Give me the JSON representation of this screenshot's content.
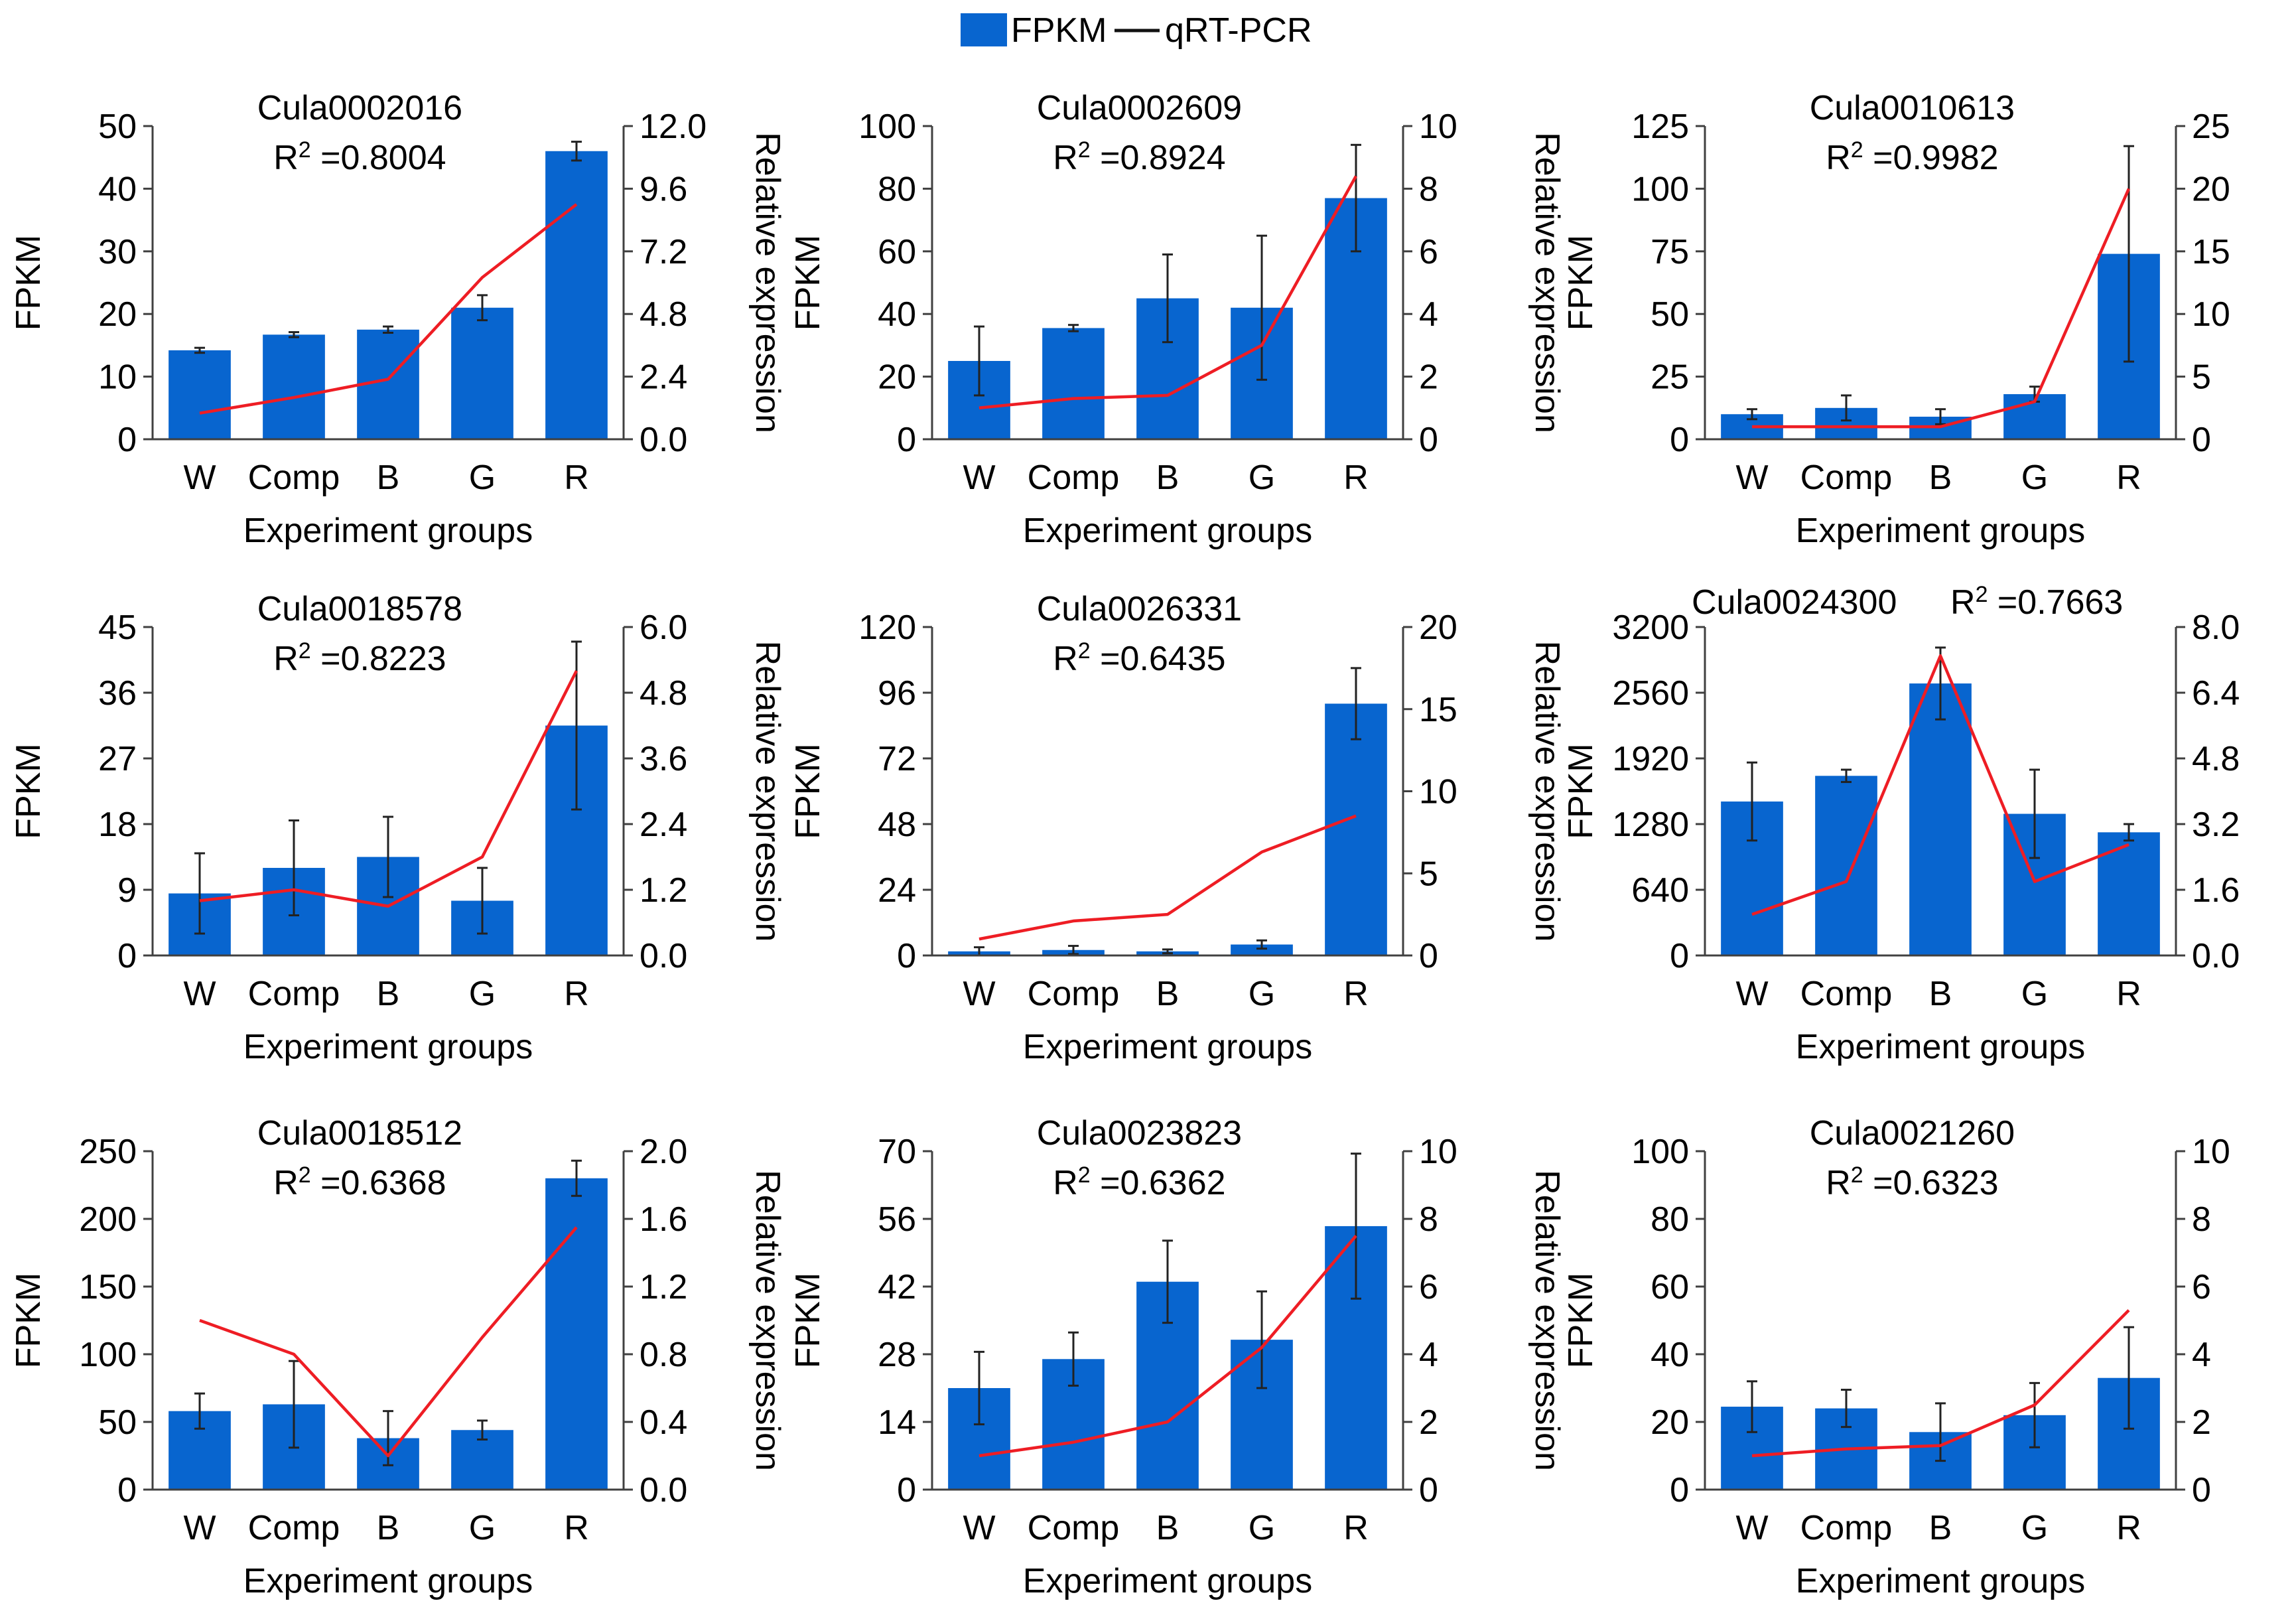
{
  "legend": {
    "bar_label": "FPKM",
    "line_label": "qRT-PCR"
  },
  "colors": {
    "bar": "#0865cf",
    "line": "#ee1d24",
    "axis": "#404040",
    "text": "#000000"
  },
  "chart_data": [
    {
      "type": "bar",
      "title": "Cula0002016",
      "r2_prefix": "R",
      "r2_value": " =0.8004",
      "categories": [
        "W",
        "Comp",
        "B",
        "G",
        "R"
      ],
      "xlabel": "Experiment groups",
      "ylabel": "FPKM",
      "y2label": "Relative expression",
      "y_ticks": [
        "0",
        "10",
        "20",
        "30",
        "40",
        "50"
      ],
      "ylim": [
        0,
        50
      ],
      "y2_ticks": [
        "0.0",
        "2.4",
        "4.8",
        "7.2",
        "9.6",
        "12.0"
      ],
      "y2lim": [
        0,
        12
      ],
      "series": [
        {
          "name": "FPKM",
          "values": [
            14.2,
            16.7,
            17.5,
            21.0,
            46.0
          ],
          "errors": [
            0.4,
            0.4,
            0.5,
            2.0,
            1.5
          ]
        },
        {
          "name": "qRT-PCR",
          "values": [
            1.0,
            1.6,
            2.3,
            6.2,
            9.0
          ]
        }
      ]
    },
    {
      "type": "bar",
      "title": "Cula0002609",
      "r2_prefix": "R",
      "r2_value": " =0.8924",
      "categories": [
        "W",
        "Comp",
        "B",
        "G",
        "R"
      ],
      "xlabel": "Experiment groups",
      "ylabel": "FPKM",
      "y2label": "Relative expression",
      "y_ticks": [
        "0",
        "20",
        "40",
        "60",
        "80",
        "100"
      ],
      "ylim": [
        0,
        100
      ],
      "y2_ticks": [
        "0",
        "2",
        "4",
        "6",
        "8",
        "10"
      ],
      "y2lim": [
        0,
        10
      ],
      "series": [
        {
          "name": "FPKM",
          "values": [
            25,
            35.5,
            45,
            42,
            77
          ],
          "errors": [
            11,
            1,
            14,
            23,
            17
          ]
        },
        {
          "name": "qRT-PCR",
          "values": [
            1.0,
            1.3,
            1.4,
            3.0,
            8.4
          ]
        }
      ]
    },
    {
      "type": "bar",
      "title": "Cula0010613",
      "r2_prefix": "R",
      "r2_value": " =0.9982",
      "categories": [
        "W",
        "Comp",
        "B",
        "G",
        "R"
      ],
      "xlabel": "Experiment groups",
      "ylabel": "FPKM",
      "y2label": "Relative expression",
      "y_ticks": [
        "0",
        "25",
        "50",
        "75",
        "100",
        "125"
      ],
      "ylim": [
        0,
        125
      ],
      "y2_ticks": [
        "0",
        "5",
        "10",
        "15",
        "20",
        "25"
      ],
      "y2lim": [
        0,
        25
      ],
      "series": [
        {
          "name": "FPKM",
          "values": [
            10,
            12.5,
            9,
            18,
            74
          ],
          "errors": [
            2,
            5,
            3,
            3,
            43
          ]
        },
        {
          "name": "qRT-PCR",
          "values": [
            1.0,
            1.0,
            1.0,
            3.0,
            20.0
          ]
        }
      ]
    },
    {
      "type": "bar",
      "title": "Cula0018578",
      "r2_prefix": "R",
      "r2_value": " =0.8223",
      "categories": [
        "W",
        "Comp",
        "B",
        "G",
        "R"
      ],
      "xlabel": "Experiment groups",
      "ylabel": "FPKM",
      "y2label": "Relative expression",
      "y_ticks": [
        "0",
        "9",
        "18",
        "27",
        "36",
        "45"
      ],
      "ylim": [
        0,
        45
      ],
      "y2_ticks": [
        "0.0",
        "1.2",
        "2.4",
        "3.6",
        "4.8",
        "6.0"
      ],
      "y2lim": [
        0,
        6
      ],
      "series": [
        {
          "name": "FPKM",
          "values": [
            8.5,
            12,
            13.5,
            7.5,
            31.5
          ],
          "errors": [
            5.5,
            6.5,
            5.5,
            4.5,
            11.5
          ]
        },
        {
          "name": "qRT-PCR",
          "values": [
            1.0,
            1.2,
            0.9,
            1.8,
            5.2
          ]
        }
      ]
    },
    {
      "type": "bar",
      "title": "Cula0026331",
      "r2_prefix": "R",
      "r2_value": " =0.6435",
      "categories": [
        "W",
        "Comp",
        "B",
        "G",
        "R"
      ],
      "xlabel": "Experiment groups",
      "ylabel": "FPKM",
      "y2label": "Relative expression",
      "y_ticks": [
        "0",
        "24",
        "48",
        "72",
        "96",
        "120"
      ],
      "ylim": [
        0,
        120
      ],
      "y2_ticks": [
        "0",
        "5",
        "10",
        "15",
        "20"
      ],
      "y2lim": [
        0,
        20
      ],
      "series": [
        {
          "name": "FPKM",
          "values": [
            1.5,
            2,
            1.5,
            4,
            92
          ],
          "errors": [
            1.5,
            1.5,
            0.7,
            1.5,
            13
          ]
        },
        {
          "name": "qRT-PCR",
          "values": [
            1.0,
            2.1,
            2.5,
            6.3,
            8.5
          ]
        }
      ]
    },
    {
      "type": "bar",
      "title": "Cula0024300",
      "r2_prefix": "R",
      "r2_value": " =0.7663",
      "categories": [
        "W",
        "Comp",
        "B",
        "G",
        "R"
      ],
      "xlabel": "Experiment groups",
      "ylabel": "FPKM",
      "y2label": "Relative expression",
      "y_ticks": [
        "0",
        "640",
        "1280",
        "1920",
        "2560",
        "3200"
      ],
      "ylim": [
        0,
        3200
      ],
      "y2_ticks": [
        "0.0",
        "1.6",
        "3.2",
        "4.8",
        "6.4",
        "8.0"
      ],
      "y2lim": [
        0,
        8
      ],
      "series": [
        {
          "name": "FPKM",
          "values": [
            1500,
            1750,
            2650,
            1380,
            1200
          ],
          "errors": [
            380,
            60,
            350,
            430,
            80
          ]
        },
        {
          "name": "qRT-PCR",
          "values": [
            1.0,
            1.8,
            7.3,
            1.8,
            2.7
          ]
        }
      ]
    },
    {
      "type": "bar",
      "title": "Cula0018512",
      "r2_prefix": "R",
      "r2_value": " =0.6368",
      "categories": [
        "W",
        "Comp",
        "B",
        "G",
        "R"
      ],
      "xlabel": "Experiment groups",
      "ylabel": "FPKM",
      "y2label": "Relative expression",
      "y_ticks": [
        "0",
        "50",
        "100",
        "150",
        "200",
        "250"
      ],
      "ylim": [
        0,
        250
      ],
      "y2_ticks": [
        "0.0",
        "0.4",
        "0.8",
        "1.2",
        "1.6",
        "2.0"
      ],
      "y2lim": [
        0,
        2
      ],
      "series": [
        {
          "name": "FPKM",
          "values": [
            58,
            63,
            38,
            44,
            230
          ],
          "errors": [
            13,
            32,
            20,
            7,
            13
          ]
        },
        {
          "name": "qRT-PCR",
          "values": [
            1.0,
            0.8,
            0.2,
            0.9,
            1.55
          ]
        }
      ]
    },
    {
      "type": "bar",
      "title": "Cula0023823",
      "r2_prefix": "R",
      "r2_value": " =0.6362",
      "categories": [
        "W",
        "Comp",
        "B",
        "G",
        "R"
      ],
      "xlabel": "Experiment groups",
      "ylabel": "FPKM",
      "y2label": "Relative expression",
      "y_ticks": [
        "0",
        "14",
        "28",
        "42",
        "56",
        "70"
      ],
      "ylim": [
        0,
        70
      ],
      "y2_ticks": [
        "0",
        "2",
        "4",
        "6",
        "8",
        "10"
      ],
      "y2lim": [
        0,
        10
      ],
      "series": [
        {
          "name": "FPKM",
          "values": [
            21,
            27,
            43,
            31,
            54.5
          ],
          "errors": [
            7.5,
            5.5,
            8.5,
            10,
            15
          ]
        },
        {
          "name": "qRT-PCR",
          "values": [
            1.0,
            1.4,
            2.0,
            4.2,
            7.5
          ]
        }
      ]
    },
    {
      "type": "bar",
      "title": "Cula0021260",
      "r2_prefix": "R",
      "r2_value": " =0.6323",
      "categories": [
        "W",
        "Comp",
        "B",
        "G",
        "R"
      ],
      "xlabel": "Experiment groups",
      "ylabel": "FPKM",
      "y2label": "Relative expression",
      "y_ticks": [
        "0",
        "20",
        "40",
        "60",
        "80",
        "100"
      ],
      "ylim": [
        0,
        100
      ],
      "y2_ticks": [
        "0",
        "2",
        "4",
        "6",
        "8",
        "10"
      ],
      "y2lim": [
        0,
        10
      ],
      "series": [
        {
          "name": "FPKM",
          "values": [
            24.5,
            24,
            17,
            22,
            33
          ],
          "errors": [
            7.5,
            5.5,
            8.5,
            9.5,
            15
          ]
        },
        {
          "name": "qRT-PCR",
          "values": [
            1.0,
            1.2,
            1.3,
            2.5,
            5.3
          ]
        }
      ]
    }
  ]
}
